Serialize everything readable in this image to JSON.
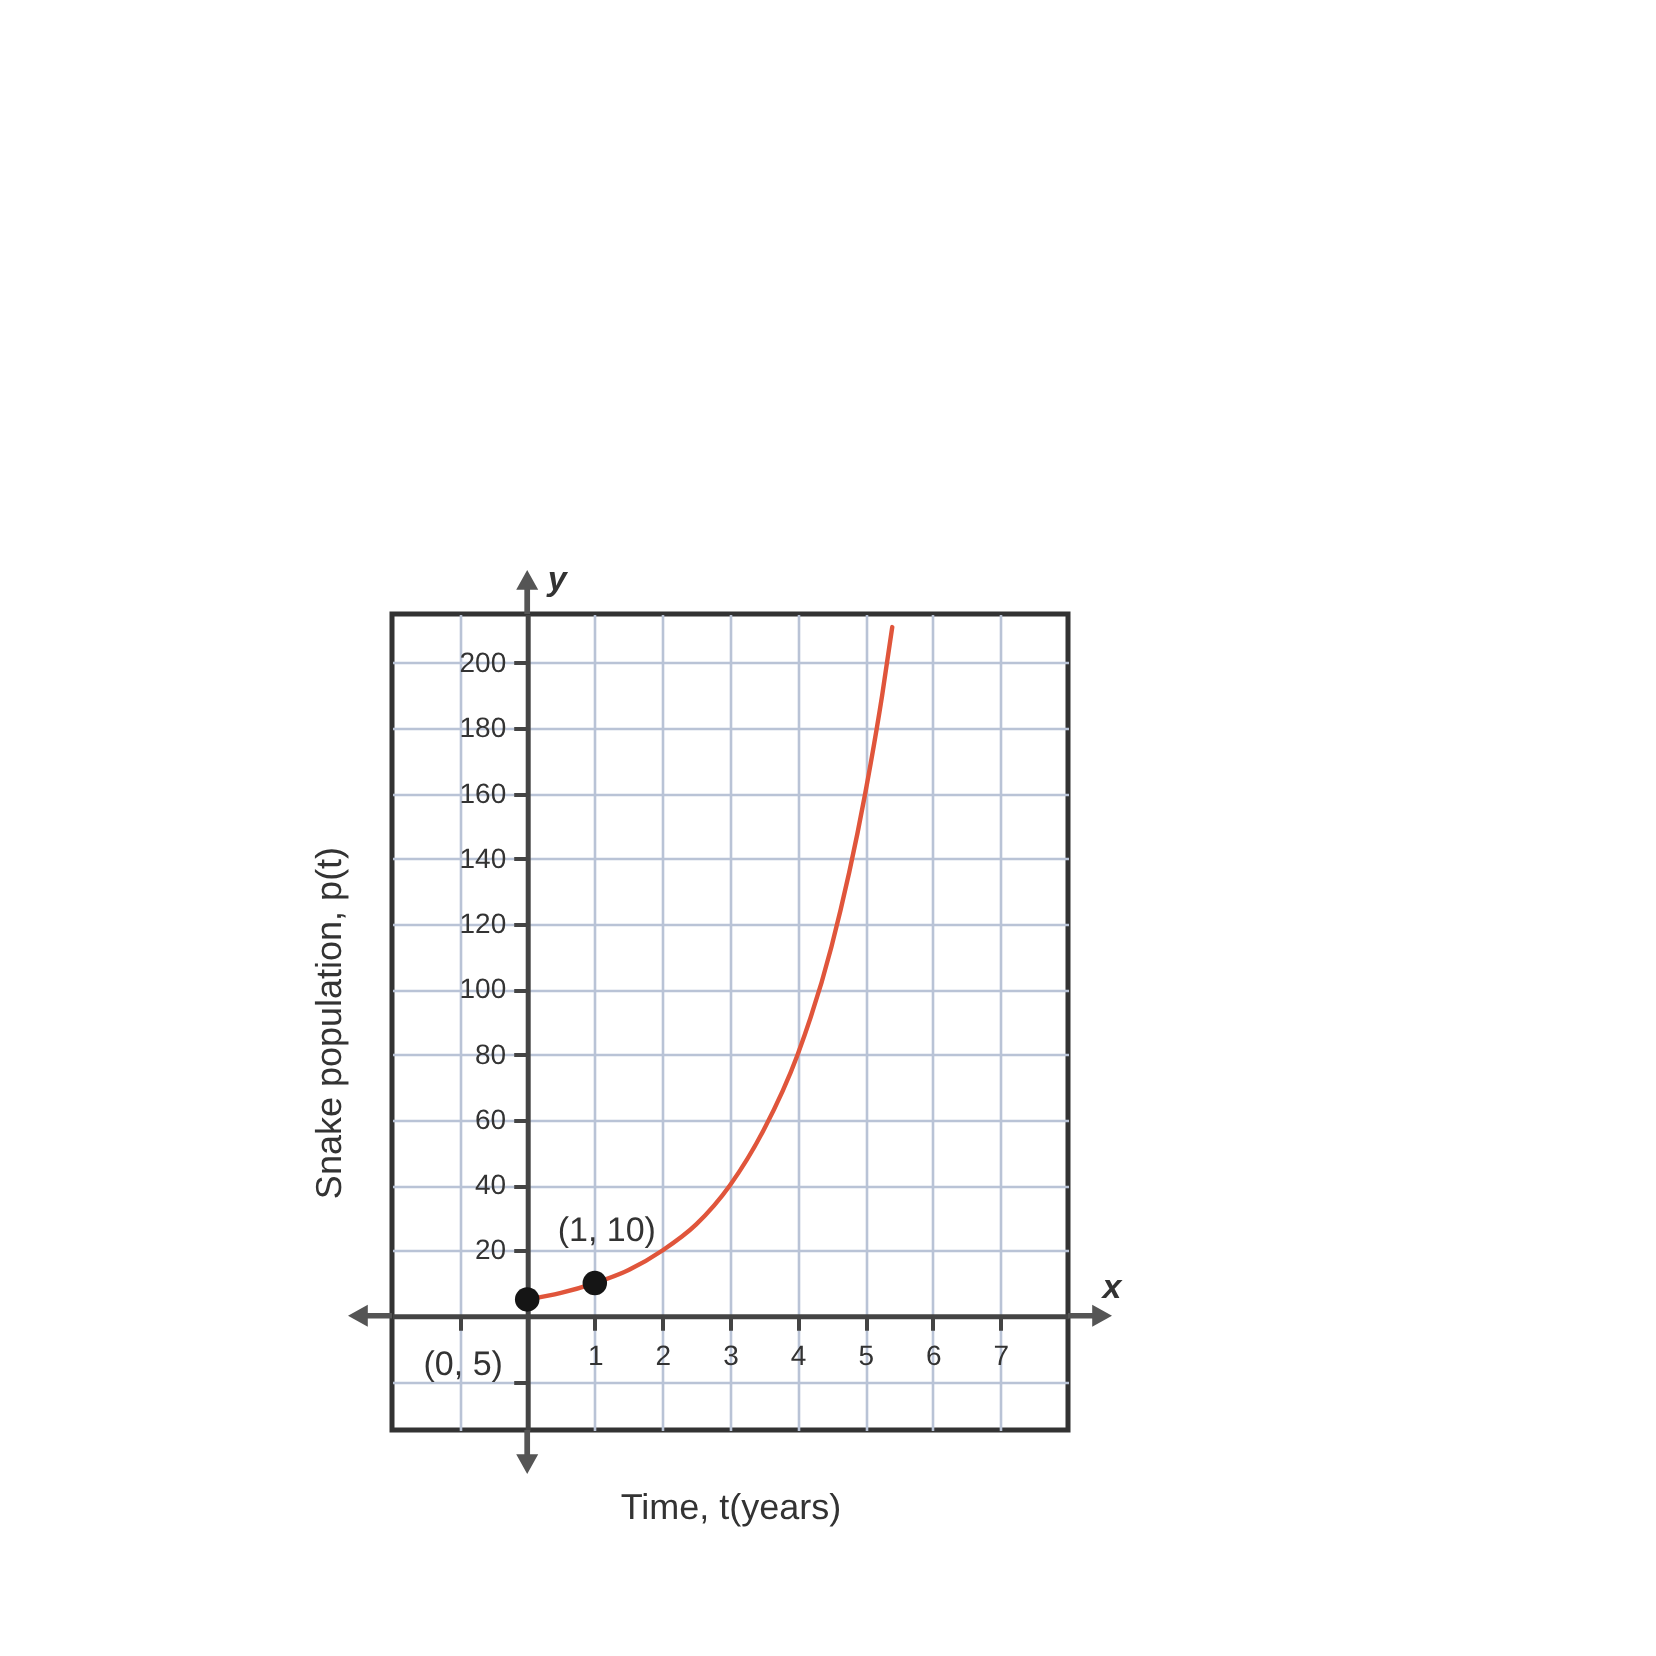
{
  "chart_data": {
    "type": "line",
    "xlabel": "Time, t(years)",
    "ylabel": "Snake population, p(t)",
    "xlim": [
      -2,
      8
    ],
    "ylim": [
      -35,
      215
    ],
    "xticks": [
      {
        "value": -1,
        "label": null
      },
      1,
      2,
      3,
      4,
      5,
      6,
      7
    ],
    "yticks": [
      {
        "value": -20,
        "label": null
      },
      20,
      40,
      60,
      80,
      100,
      120,
      140,
      160,
      180,
      200
    ],
    "grid": true,
    "series": [
      {
        "color": "#e0553b",
        "x": [
          0,
          0.5,
          1,
          1.5,
          2,
          2.5,
          3,
          3.5,
          4,
          4.5,
          5,
          5.25,
          5.4
        ],
        "values": [
          5,
          7,
          10,
          14,
          20,
          28,
          40,
          57,
          80,
          113,
          160,
          190,
          211
        ]
      },
      {
        "type": "scatter",
        "color": "#151515",
        "marker": "circle",
        "x": [
          0,
          1
        ],
        "values": [
          5,
          10
        ]
      }
    ],
    "annotations": [
      {
        "text": "(0, 5)",
        "x": 0,
        "y": 5
      },
      {
        "text": "(1, 10)",
        "x": 1,
        "y": 10
      },
      "y",
      "x"
    ]
  }
}
